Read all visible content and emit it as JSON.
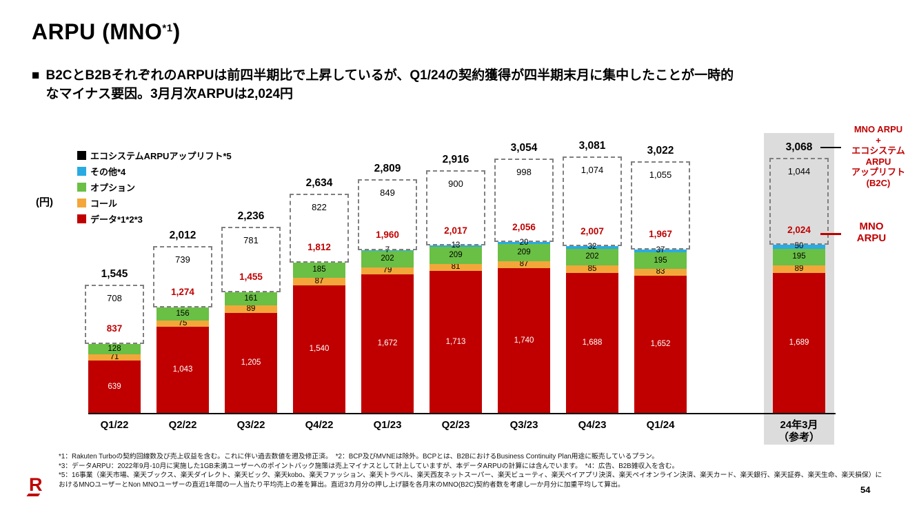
{
  "page": {
    "title_main": "ARPU (MNO",
    "title_sup": "*1",
    "title_close": ")",
    "subtitle_marker": "■",
    "subtitle_text": "B2CとB2BそれぞれのARPUは前四半期比で上昇しているが、Q1/24の契約獲得が四半期末月に集中したことが一時的\nなマイナス要因。3月月次ARPUは2,024円",
    "page_number": "54",
    "logo_letter": "R"
  },
  "chart_data": {
    "type": "bar",
    "stacked": true,
    "ylabel": "(円)",
    "grid": false,
    "legend_position": "top-left",
    "categories": [
      "Q1/22",
      "Q2/22",
      "Q3/22",
      "Q4/22",
      "Q1/23",
      "Q2/23",
      "Q3/23",
      "Q4/23",
      "Q1/24",
      "24年3月\n（参考）"
    ],
    "series": [
      {
        "name": "データ*1*2*3",
        "color": "#c00000",
        "label_color": "#ffffff",
        "values": [
          639,
          1043,
          1205,
          1540,
          1672,
          1713,
          1740,
          1688,
          1652,
          1689
        ]
      },
      {
        "name": "コール",
        "color": "#f3a73a",
        "label_color": "#000000",
        "values": [
          71,
          75,
          89,
          87,
          79,
          81,
          87,
          85,
          83,
          89
        ]
      },
      {
        "name": "オプション",
        "color": "#6abf45",
        "label_color": "#000000",
        "values": [
          128,
          156,
          161,
          185,
          202,
          209,
          209,
          202,
          195,
          195
        ]
      },
      {
        "name": "その他*4",
        "color": "#29abe2",
        "label_color": "#000000",
        "values": [
          0,
          0,
          0,
          0,
          7,
          13,
          20,
          32,
          37,
          50
        ]
      },
      {
        "name": "エコシステムARPUアップリフト*5",
        "color": "#000000",
        "dashed": true,
        "values": [
          708,
          739,
          781,
          822,
          849,
          900,
          998,
          1074,
          1055,
          1044
        ]
      }
    ],
    "totals": [
      1545,
      2012,
      2236,
      2634,
      2809,
      2916,
      3054,
      3081,
      3022,
      3068
    ],
    "mno_arpu": [
      837,
      1274,
      1455,
      1812,
      1960,
      2017,
      2056,
      2007,
      1967,
      2024
    ],
    "highlight_last_column": true,
    "highlight_color": "#dcdcdc",
    "accent_color": "#c00000",
    "annotations": {
      "right_top": "MNO ARPU\n+\nエコシステム\nARPU\nアップリフト\n(B2C)",
      "right_mid": "MNO\nARPU"
    }
  },
  "footnotes": [
    "*1：Rakuten Turboの契約回線数及び売上収益を含む。これに伴い過去数値を遡及修正済。　*2：BCP及びMVNEは除外。BCPとは、B2BにおけるBusiness Continuity Plan用途に販売しているプラン。",
    "*3：データARPU：2022年9月-10月に実施した1GB未満ユーザーへのポイントバック施策は売上マイナスとして計上していますが、本データARPUの計算には含んでいます。　*4：広告、B2B雑収入を含む。",
    "*5：16事業（楽天市場、楽天ブックス、楽天ダイレクト、楽天ビック、楽天kobo、楽天ファッション、楽天トラベル、楽天西友ネットスーパー、楽天ビューティ、楽天ペイアプリ決済、楽天ペイオンライン決済、楽天カード、楽天銀行、楽天証券、楽天生命、楽天損保）におけるMNOユーザーとNon MNOユーザーの直近1年間の一人当たり平均売上の差を算出。直近3カ月分の押し上げ額を各月末のMNO(B2C)契約者数を考慮し一か月分に加重平均して算出。"
  ]
}
